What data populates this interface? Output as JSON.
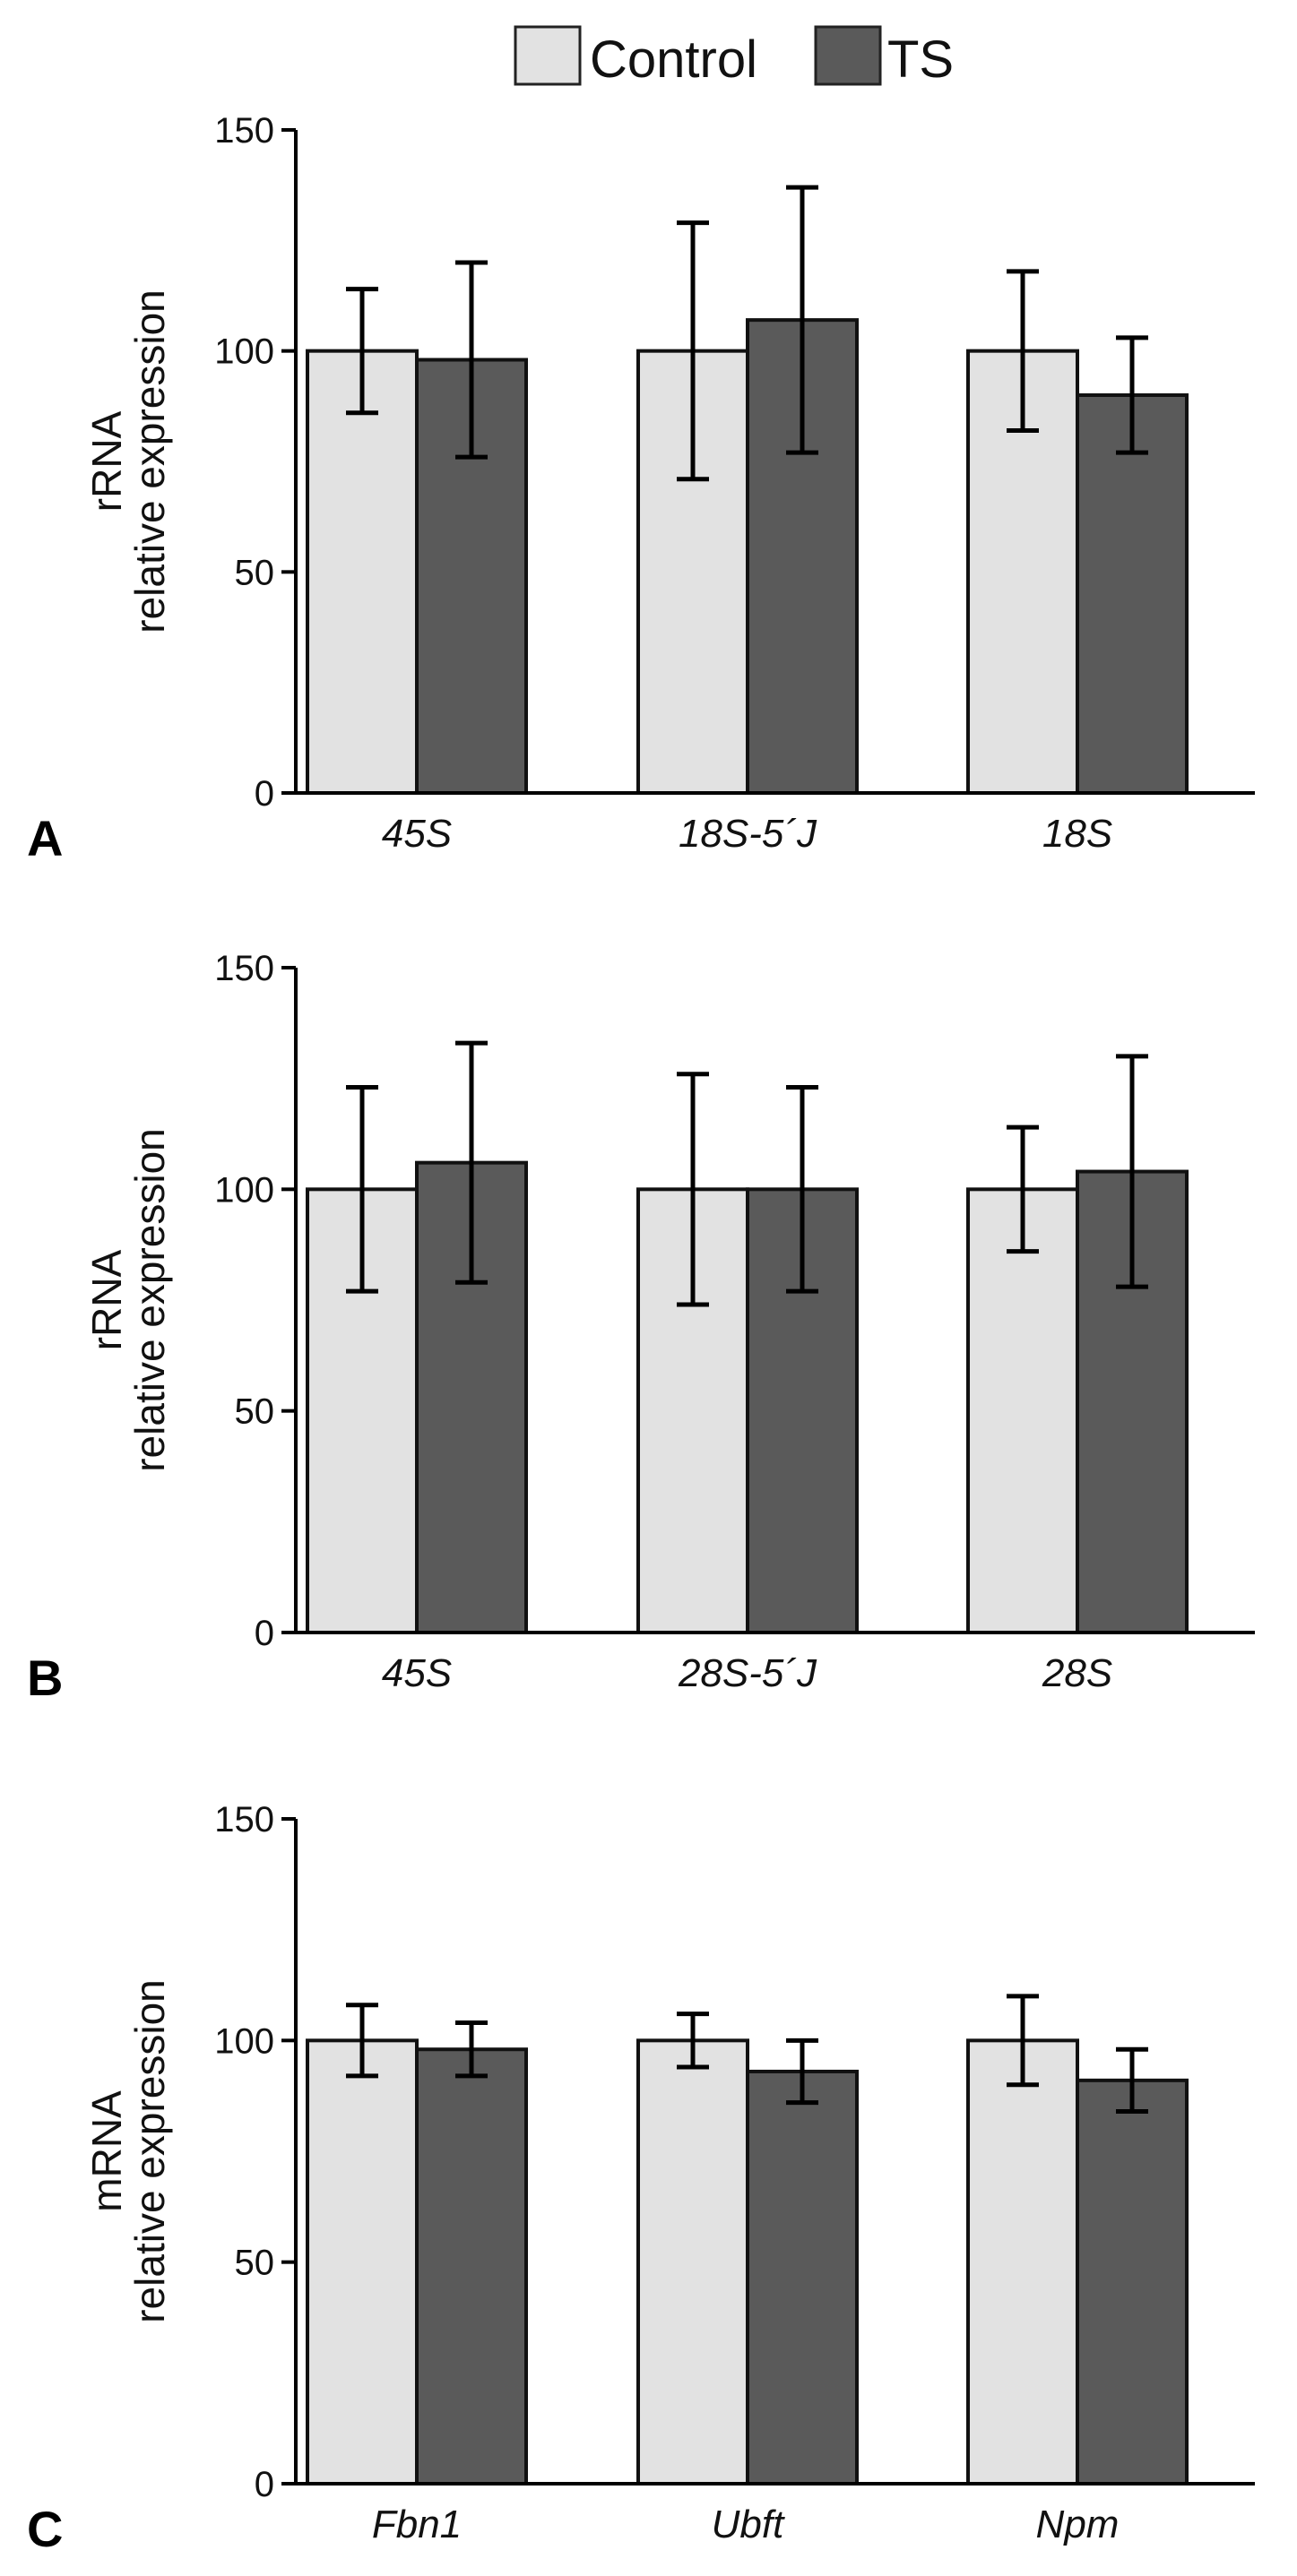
{
  "legend": [
    {
      "label": "Control",
      "color": "#e2e2e2"
    },
    {
      "label": "TS",
      "color": "#5a5a5a"
    }
  ],
  "chart_data": [
    {
      "type": "bar",
      "panel": "A",
      "ylabel_line1": "rRNA",
      "ylabel_line2": "relative expression",
      "ylim": [
        0,
        150
      ],
      "yticks": [
        0,
        50,
        100,
        150
      ],
      "categories": [
        "45S",
        "18S-5´J",
        "18S"
      ],
      "series": [
        {
          "name": "Control",
          "values": [
            100,
            100,
            100
          ],
          "errors": [
            14,
            29,
            18
          ]
        },
        {
          "name": "TS",
          "values": [
            98,
            107,
            90
          ],
          "errors": [
            22,
            30,
            13
          ]
        }
      ]
    },
    {
      "type": "bar",
      "panel": "B",
      "ylabel_line1": "rRNA",
      "ylabel_line2": "relative expression",
      "ylim": [
        0,
        150
      ],
      "yticks": [
        0,
        50,
        100,
        150
      ],
      "categories": [
        "45S",
        "28S-5´J",
        "28S"
      ],
      "series": [
        {
          "name": "Control",
          "values": [
            100,
            100,
            100
          ],
          "errors": [
            23,
            26,
            14
          ]
        },
        {
          "name": "TS",
          "values": [
            106,
            100,
            104
          ],
          "errors": [
            27,
            23,
            26
          ]
        }
      ]
    },
    {
      "type": "bar",
      "panel": "C",
      "ylabel_line1": "mRNA",
      "ylabel_line2": "relative expression",
      "ylim": [
        0,
        150
      ],
      "yticks": [
        0,
        50,
        100,
        150
      ],
      "categories": [
        "Fbn1",
        "Ubft",
        "Npm"
      ],
      "series": [
        {
          "name": "Control",
          "values": [
            100,
            100,
            100
          ],
          "errors": [
            8,
            6,
            10
          ]
        },
        {
          "name": "TS",
          "values": [
            98,
            93,
            91
          ],
          "errors": [
            6,
            7,
            7
          ]
        }
      ]
    }
  ]
}
